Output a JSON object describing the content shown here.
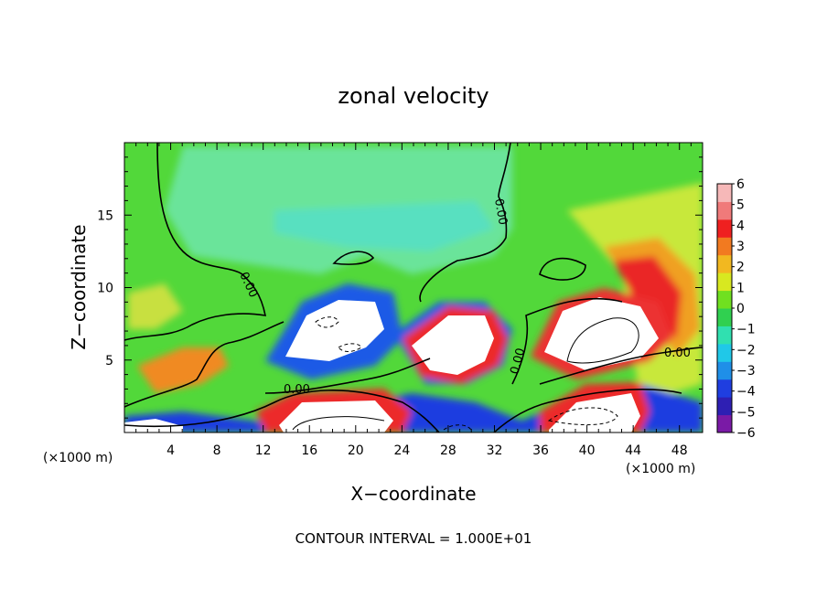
{
  "chart_data": {
    "type": "heatmap",
    "title": "zonal velocity",
    "xlabel": "X−coordinate",
    "ylabel": "Z−coordinate",
    "x_unit": "(×1000 m)",
    "y_unit": "(×1000 m)",
    "footer": "CONTOUR INTERVAL = 1.000E+01",
    "xlim": [
      0,
      50
    ],
    "ylim": [
      0,
      20
    ],
    "x_ticks": [
      "4",
      "8",
      "12",
      "16",
      "20",
      "24",
      "28",
      "32",
      "36",
      "40",
      "44",
      "48"
    ],
    "y_ticks": [
      "5",
      "10",
      "15"
    ],
    "colorbar": {
      "min": -6,
      "max": 6,
      "labels": [
        "6",
        "5",
        "4",
        "3",
        "2",
        "1",
        "0",
        "−1",
        "−2",
        "−3",
        "−4",
        "−5",
        "−6"
      ],
      "colors": [
        "#7a1aa6",
        "#2e1fb3",
        "#1f3ee0",
        "#1f8fe8",
        "#20c8e8",
        "#30e0b0",
        "#30d050",
        "#70e020",
        "#d8e820",
        "#f2b820",
        "#f27a20",
        "#ef2020",
        "#f07a7a",
        "#f6b8b8"
      ]
    },
    "contour_label": "0.00"
  }
}
